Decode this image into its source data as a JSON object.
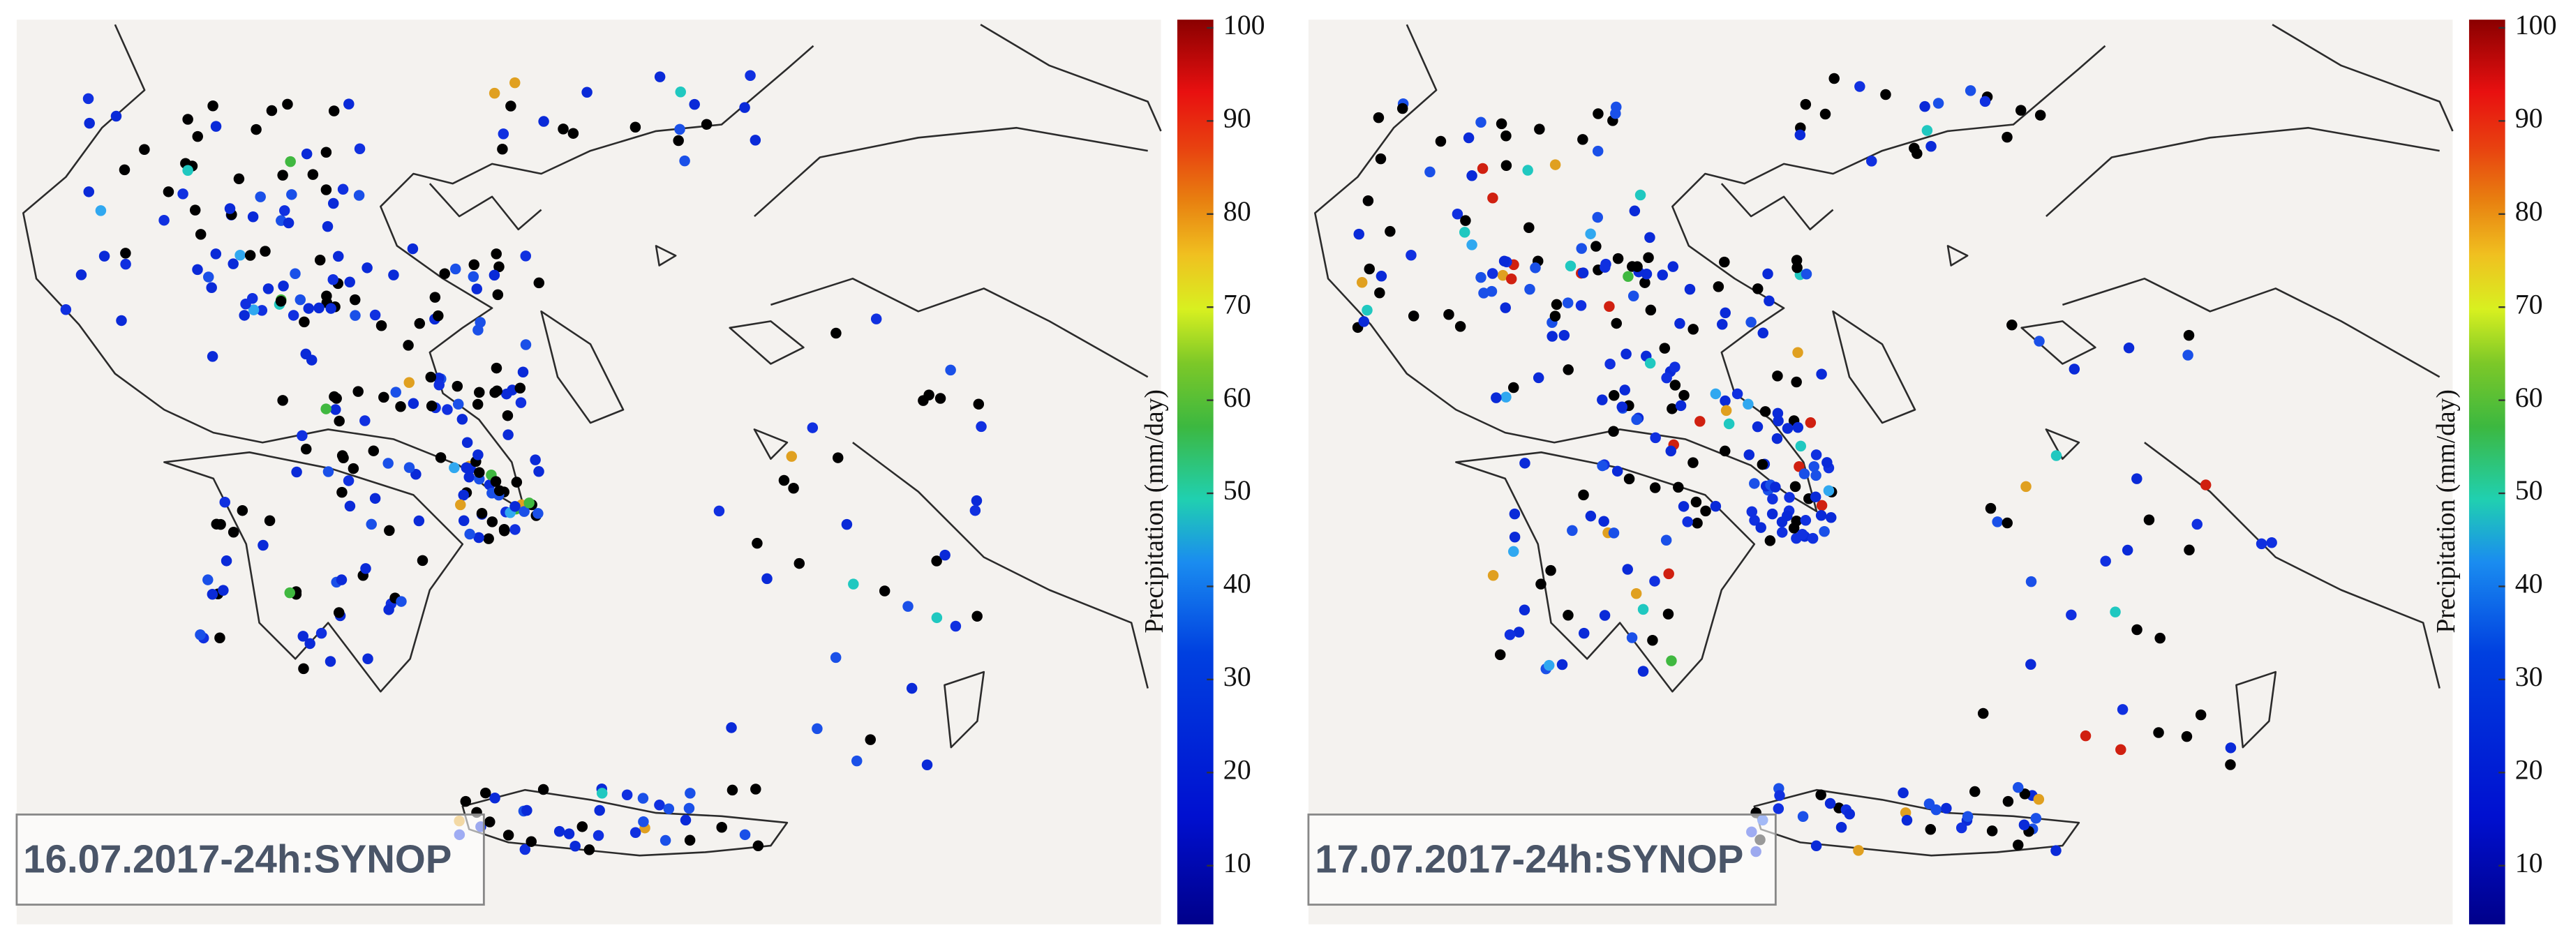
{
  "maps": [
    {
      "label": "16.07.2017-24h:SYNOP",
      "colorbar": {
        "title": "Precipitation (mm/day)",
        "ticks": [
          10,
          20,
          30,
          40,
          50,
          60,
          70,
          80,
          90,
          100
        ]
      }
    },
    {
      "label": "17.07.2017-24h:SYNOP",
      "colorbar": {
        "title": "Precipitation (mm/day)",
        "ticks": [
          10,
          20,
          30,
          40,
          50,
          60,
          70,
          80,
          90,
          100
        ]
      }
    }
  ]
}
